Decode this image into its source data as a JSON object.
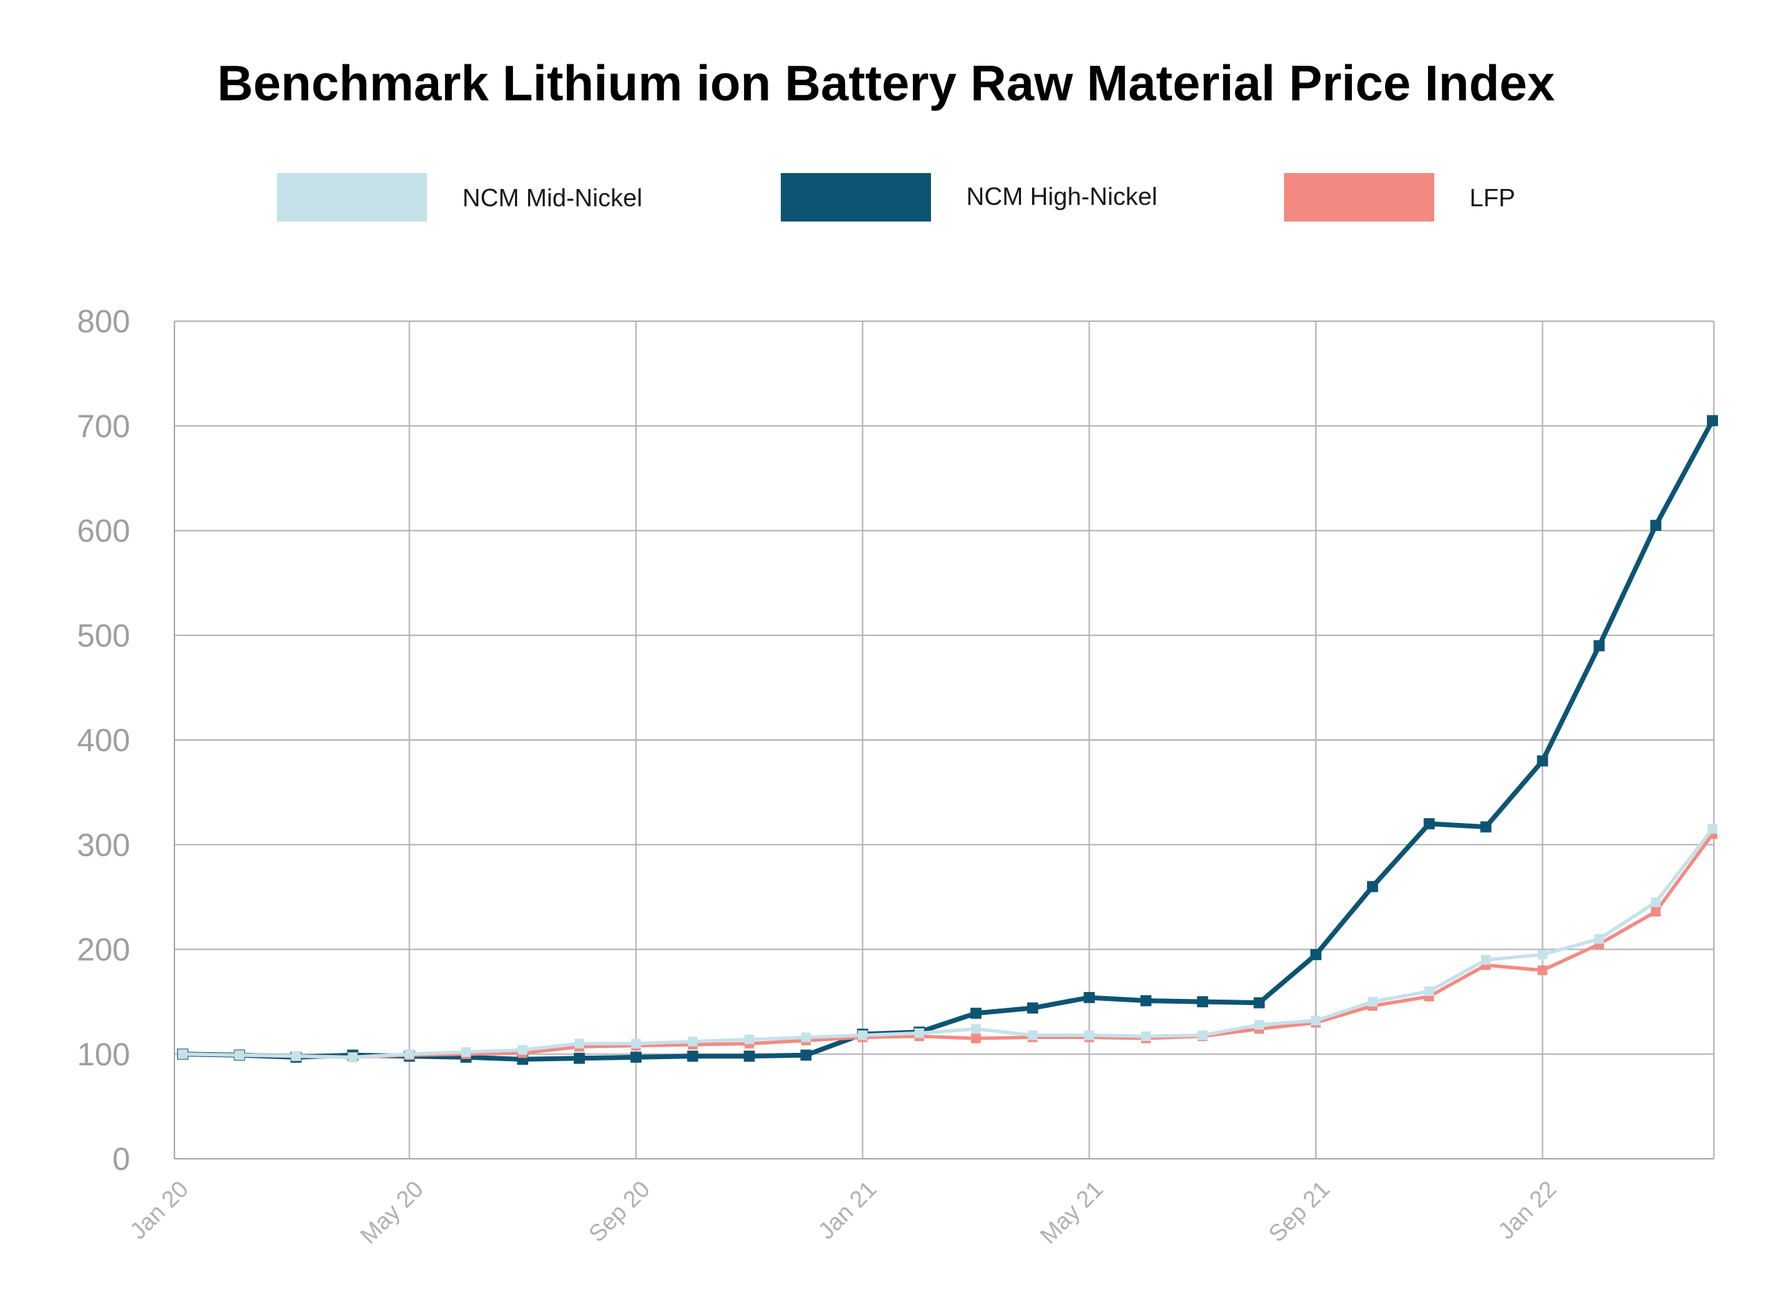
{
  "chart_data": {
    "type": "line",
    "title": "Benchmark Lithium ion Battery Raw Material Price Index",
    "xlabel": "",
    "ylabel": "",
    "ylim": [
      0,
      800
    ],
    "yticks": [
      "0",
      "100",
      "200",
      "300",
      "400",
      "500",
      "600",
      "700",
      "800"
    ],
    "xticks": [
      "Jan 20",
      "May 20",
      "Sep 20",
      "Jan 21",
      "May 21",
      "Sep 21",
      "Jan 22"
    ],
    "grid": true,
    "legend_placement": "top",
    "x": [
      "2020-01",
      "2020-02",
      "2020-03",
      "2020-04",
      "2020-05",
      "2020-06",
      "2020-07",
      "2020-08",
      "2020-09",
      "2020-10",
      "2020-11",
      "2020-12",
      "2021-01",
      "2021-02",
      "2021-03",
      "2021-04",
      "2021-05",
      "2021-06",
      "2021-07",
      "2021-08",
      "2021-09",
      "2021-10",
      "2021-11",
      "2021-12",
      "2022-01",
      "2022-02",
      "2022-03",
      "2022-04"
    ],
    "series": [
      {
        "name": "NCM High-Nickel",
        "color": "#0d5473",
        "values": [
          100,
          99,
          97,
          99,
          98,
          97,
          95,
          96,
          97,
          98,
          98,
          99,
          119,
          121,
          139,
          144,
          154,
          151,
          150,
          149,
          195,
          260,
          320,
          317,
          380,
          490,
          605,
          705
        ]
      },
      {
        "name": "LFP",
        "color": "#f38a82",
        "values": [
          100,
          99,
          98,
          97,
          99,
          100,
          101,
          107,
          108,
          109,
          110,
          113,
          116,
          117,
          115,
          116,
          116,
          115,
          117,
          124,
          130,
          146,
          155,
          185,
          180,
          205,
          236,
          310
        ]
      },
      {
        "name": "NCM Mid-Nickel",
        "color": "#c5e1ea",
        "values": [
          100,
          99,
          98,
          97,
          100,
          102,
          104,
          110,
          110,
          112,
          114,
          116,
          118,
          120,
          124,
          118,
          118,
          117,
          118,
          128,
          132,
          150,
          160,
          190,
          195,
          210,
          245,
          315
        ]
      }
    ],
    "legend": [
      {
        "name": "NCM Mid-Nickel",
        "color": "#c5e1ea"
      },
      {
        "name": "NCM High-Nickel",
        "color": "#0d5473"
      },
      {
        "name": "LFP",
        "color": "#f38a82"
      }
    ]
  }
}
